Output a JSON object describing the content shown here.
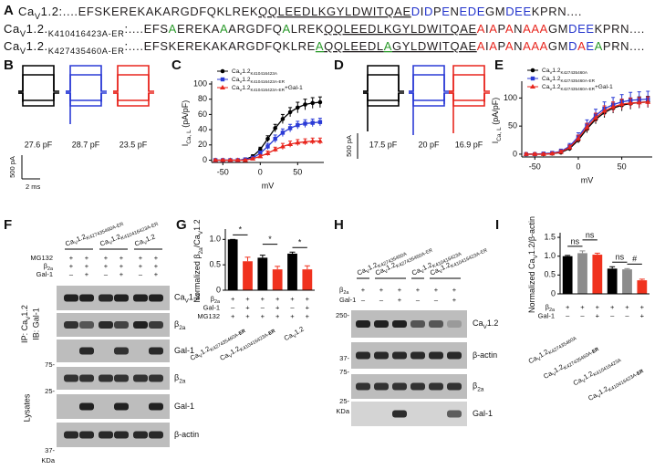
{
  "panel_labels": [
    "A",
    "B",
    "C",
    "D",
    "E",
    "F",
    "G",
    "H",
    "I"
  ],
  "sequence_alignment": {
    "rows": [
      {
        "label": "CaV1.2:",
        "segments": [
          {
            "text": "....EFSKEREKAKARGDFQKLREK",
            "color": "#231f20"
          },
          {
            "text": "QQLEEDLKGYLDWITQAE",
            "color": "#231f20",
            "underline": true
          },
          {
            "text": "D",
            "color": "#2233cc"
          },
          {
            "text": "I",
            "color": "#231f20"
          },
          {
            "text": "D",
            "color": "#2233cc"
          },
          {
            "text": "P",
            "color": "#231f20"
          },
          {
            "text": "E",
            "color": "#2233cc"
          },
          {
            "text": "N",
            "color": "#231f20"
          },
          {
            "text": "EDE",
            "color": "#2233cc"
          },
          {
            "text": "GM",
            "color": "#231f20"
          },
          {
            "text": "DEE",
            "color": "#2233cc"
          },
          {
            "text": "KPRN....",
            "color": "#231f20"
          }
        ]
      },
      {
        "label": "CaV1.2.K410416423A-ER:",
        "segments": [
          {
            "text": "....EFS",
            "color": "#231f20"
          },
          {
            "text": "A",
            "color": "#2a9a2a"
          },
          {
            "text": "EREKA",
            "color": "#231f20"
          },
          {
            "text": "A",
            "color": "#2a9a2a"
          },
          {
            "text": "ARGDFQ",
            "color": "#231f20"
          },
          {
            "text": "A",
            "color": "#2a9a2a"
          },
          {
            "text": "LREK",
            "color": "#231f20"
          },
          {
            "text": "QQLEEDLKGYLDWITQAE",
            "color": "#231f20",
            "underline": true
          },
          {
            "text": "A",
            "color": "#e8261e"
          },
          {
            "text": "I",
            "color": "#231f20"
          },
          {
            "text": "A",
            "color": "#e8261e"
          },
          {
            "text": "P",
            "color": "#231f20"
          },
          {
            "text": "A",
            "color": "#e8261e"
          },
          {
            "text": "N",
            "color": "#231f20"
          },
          {
            "text": "AAA",
            "color": "#e8261e"
          },
          {
            "text": "GM",
            "color": "#231f20"
          },
          {
            "text": "DEE",
            "color": "#2233cc"
          },
          {
            "text": "KPRN....",
            "color": "#231f20"
          }
        ]
      },
      {
        "label": "CaV1.2.K427435460A-ER:",
        "segments": [
          {
            "text": "....EFSKEREKAKARGDFQKLRE",
            "color": "#231f20"
          },
          {
            "text": "A",
            "color": "#2a9a2a",
            "underline": true
          },
          {
            "text": "QQLEEDL",
            "color": "#231f20",
            "underline": true
          },
          {
            "text": "A",
            "color": "#2a9a2a",
            "underline": true
          },
          {
            "text": "GYLDWITQAE",
            "color": "#231f20",
            "underline": true
          },
          {
            "text": "A",
            "color": "#e8261e"
          },
          {
            "text": "I",
            "color": "#231f20"
          },
          {
            "text": "A",
            "color": "#e8261e"
          },
          {
            "text": "P",
            "color": "#231f20"
          },
          {
            "text": "A",
            "color": "#e8261e"
          },
          {
            "text": "N",
            "color": "#231f20"
          },
          {
            "text": "AAA",
            "color": "#e8261e"
          },
          {
            "text": "GM",
            "color": "#231f20"
          },
          {
            "text": "D",
            "color": "#2233cc"
          },
          {
            "text": "A",
            "color": "#e8261e"
          },
          {
            "text": "E",
            "color": "#2233cc"
          },
          {
            "text": "A",
            "color": "#2a9a2a"
          },
          {
            "text": "PRN....",
            "color": "#231f20"
          }
        ]
      }
    ]
  },
  "traces_b": {
    "capacitances": [
      "27.6 pF",
      "28.7 pF",
      "23.5 pF"
    ],
    "colors": [
      "#000000",
      "#2b3bd6",
      "#e8261e"
    ],
    "scale_current": "500 pA",
    "scale_time": "2 ms"
  },
  "traces_d": {
    "capacitances": [
      "17.5 pF",
      "20 pF",
      "16.9 pF"
    ],
    "colors": [
      "#000000",
      "#2b3bd6",
      "#e8261e"
    ],
    "scale_current": "500 pA"
  },
  "chart_data": [
    {
      "type": "line",
      "xlabel": "mV",
      "ylabel": "ICa, L (pA/pF)",
      "x": [
        -60,
        -50,
        -40,
        -30,
        -20,
        -10,
        0,
        10,
        20,
        30,
        40,
        50,
        60,
        70,
        80
      ],
      "series": [
        {
          "name": "CaV1.2K410416423A",
          "color": "#000000",
          "marker": "circle",
          "values": [
            0,
            0,
            0,
            0,
            1,
            5,
            14,
            28,
            42,
            54,
            63,
            69,
            73,
            75,
            76
          ],
          "errors": [
            1,
            1,
            1,
            1,
            1,
            2,
            3,
            4,
            5,
            6,
            6,
            7,
            7,
            7,
            7
          ]
        },
        {
          "name": "CaV1.2K410416423A-ER",
          "color": "#2b3bd6",
          "marker": "square",
          "values": [
            0,
            0,
            0,
            0,
            1,
            3,
            9,
            18,
            28,
            36,
            42,
            46,
            48,
            49,
            50
          ],
          "errors": [
            1,
            1,
            1,
            1,
            1,
            2,
            3,
            4,
            5,
            5,
            5,
            5,
            5,
            5,
            5
          ]
        },
        {
          "name": "CaV1.2K410416423A-ER+Gal-1",
          "color": "#e8261e",
          "marker": "triangle",
          "values": [
            0,
            0,
            0,
            0,
            0,
            2,
            5,
            9,
            14,
            18,
            21,
            23,
            24,
            25,
            25
          ],
          "errors": [
            1,
            1,
            1,
            1,
            1,
            1,
            2,
            3,
            3,
            4,
            4,
            4,
            4,
            4,
            4
          ]
        }
      ],
      "xlim": [
        -65,
        85
      ],
      "xticks": [
        -50,
        0,
        50
      ],
      "ylim": [
        -3,
        100
      ],
      "yticks": [
        0,
        20,
        40,
        60,
        80,
        100
      ]
    },
    {
      "type": "line",
      "xlabel": "mV",
      "ylabel": "ICa, L (pA/pF)",
      "x": [
        -60,
        -50,
        -40,
        -30,
        -20,
        -10,
        0,
        10,
        20,
        30,
        40,
        50,
        60,
        70,
        80
      ],
      "series": [
        {
          "name": "CaV1.2K427435460A",
          "color": "#000000",
          "marker": "circle",
          "values": [
            0,
            0,
            0,
            1,
            3,
            10,
            25,
            45,
            62,
            74,
            82,
            87,
            90,
            92,
            93
          ],
          "errors": [
            2,
            2,
            2,
            2,
            3,
            4,
            5,
            7,
            8,
            9,
            9,
            10,
            10,
            10,
            10
          ]
        },
        {
          "name": "CaV1.2K427435460A-ER",
          "color": "#2b3bd6",
          "marker": "square",
          "values": [
            0,
            0,
            1,
            2,
            5,
            14,
            31,
            52,
            69,
            81,
            88,
            93,
            96,
            97,
            98
          ],
          "errors": [
            2,
            2,
            2,
            3,
            4,
            5,
            7,
            9,
            11,
            12,
            13,
            13,
            14,
            14,
            14
          ]
        },
        {
          "name": "CaV1.2K427435460A-ER+Gal-1",
          "color": "#e8261e",
          "marker": "triangle",
          "values": [
            0,
            0,
            0,
            1,
            4,
            12,
            28,
            48,
            65,
            77,
            84,
            89,
            91,
            92,
            93
          ],
          "errors": [
            2,
            2,
            2,
            2,
            3,
            4,
            6,
            7,
            8,
            9,
            9,
            9,
            9,
            9,
            9
          ]
        }
      ],
      "xlim": [
        -65,
        85
      ],
      "xticks": [
        -50,
        0,
        50
      ],
      "ylim": [
        -5,
        125
      ],
      "yticks": [
        0,
        50,
        100
      ]
    },
    {
      "type": "bar",
      "ylabel": "Normalized β2a/CaV1.2",
      "values": [
        1,
        0.57,
        0.64,
        0.41,
        0.72,
        0.41
      ],
      "errors": [
        0,
        0.08,
        0.05,
        0.06,
        0.03,
        0.07
      ],
      "colors": [
        "#000000",
        "#f0321e",
        "#000000",
        "#f0321e",
        "#000000",
        "#f0321e"
      ],
      "ylim": [
        0,
        1.15
      ],
      "yticks": [
        0,
        0.5,
        {
          "value": 1,
          "label": "1.0"
        }
      ],
      "conditions": [
        {
          "label": "β2a",
          "signs": [
            "+",
            "+",
            "+",
            "+",
            "+",
            "+"
          ]
        },
        {
          "label": "Gal-1",
          "signs": [
            "–",
            "+",
            "–",
            "+",
            "–",
            "+"
          ]
        },
        {
          "label": "MG132",
          "signs": [
            "+",
            "+",
            "+",
            "+",
            "+",
            "+"
          ]
        }
      ],
      "annotations": [
        {
          "text": "*",
          "between": [
            0,
            1
          ]
        },
        {
          "text": "*",
          "between": [
            2,
            3
          ]
        },
        {
          "text": "*",
          "between": [
            4,
            5
          ]
        }
      ],
      "groups": [
        "CaV1.2K427435460A-ER",
        "CaV1.2K410416423A-ER",
        "CaV1.2"
      ]
    },
    {
      "type": "bar",
      "ylabel": "Normalized CaV1.2/β-actin",
      "values": [
        1,
        1.08,
        1.04,
        0.67,
        0.65,
        0.36
      ],
      "errors": [
        0.02,
        0.06,
        0.04,
        0.05,
        0.02,
        0.03
      ],
      "colors": [
        "#000000",
        "#8c8c8c",
        "#f0321e",
        "#000000",
        "#8c8c8c",
        "#f0321e"
      ],
      "ylim": [
        0,
        1.55
      ],
      "yticks": [
        0,
        0.5,
        {
          "value": 1,
          "label": "1.0"
        },
        1.5
      ],
      "conditions": [
        {
          "label": "β2a",
          "signs": [
            "+",
            "+",
            "+",
            "+",
            "+",
            "+"
          ]
        },
        {
          "label": "Gal-1",
          "signs": [
            "–",
            "–",
            "+",
            "–",
            "–",
            "+"
          ]
        }
      ],
      "annotations": [
        {
          "text": "ns",
          "between": [
            0,
            1
          ]
        },
        {
          "text": "ns",
          "between": [
            1,
            2
          ]
        },
        {
          "text": "ns",
          "between": [
            3,
            4
          ]
        },
        {
          "text": "#",
          "between": [
            4,
            5
          ]
        }
      ],
      "groups": [
        "CaV1.2K427435460A",
        "CaV1.2K427435460A-ER",
        "CaV1.2K410416423A",
        "CaV1.2K410416423A-ER"
      ]
    }
  ],
  "blot_f": {
    "lane_headers": [
      "CaV1.2K427435460A-ER",
      "CaV1.2K410416423A-ER",
      "CaV1.2"
    ],
    "conditions": [
      {
        "label": "MG132",
        "signs": [
          "+",
          "+",
          "+",
          "+",
          "+",
          "+"
        ]
      },
      {
        "label": "β2a",
        "signs": [
          "+",
          "+",
          "+",
          "+",
          "+",
          "+"
        ]
      },
      {
        "label": "Gal-1",
        "signs": [
          "–",
          "+",
          "–",
          "+",
          "–",
          "+"
        ]
      }
    ],
    "ip_label": "IP: CaV1.2",
    "ib_label": "IB: Gal-1",
    "lysates_label": "Lysates",
    "band_labels": [
      "CaV1.2",
      "β2a",
      "Gal-1",
      "β2a",
      "Gal-1",
      "β-actin"
    ],
    "size_markers": [
      "75-",
      "25-",
      "37-"
    ],
    "size_unit": "KDa"
  },
  "blot_h": {
    "lane_headers": [
      "CaV1.2K427435460A",
      "CaV1.2K427435460A-ER",
      "CaV1.2K410416423A",
      "CaV1.2K410416423A-ER"
    ],
    "conditions": [
      {
        "label": "β2a",
        "signs": [
          "+",
          "+",
          "+",
          "+",
          "+",
          "+"
        ]
      },
      {
        "label": "Gal-1",
        "signs": [
          "–",
          "–",
          "+",
          "–",
          "–",
          "+"
        ]
      }
    ],
    "band_labels": [
      "CaV1.2",
      "β-actin",
      "β2a",
      "Gal-1"
    ],
    "size_markers": [
      "250-",
      "37-",
      "75-",
      "25-"
    ],
    "size_unit": "KDa"
  }
}
